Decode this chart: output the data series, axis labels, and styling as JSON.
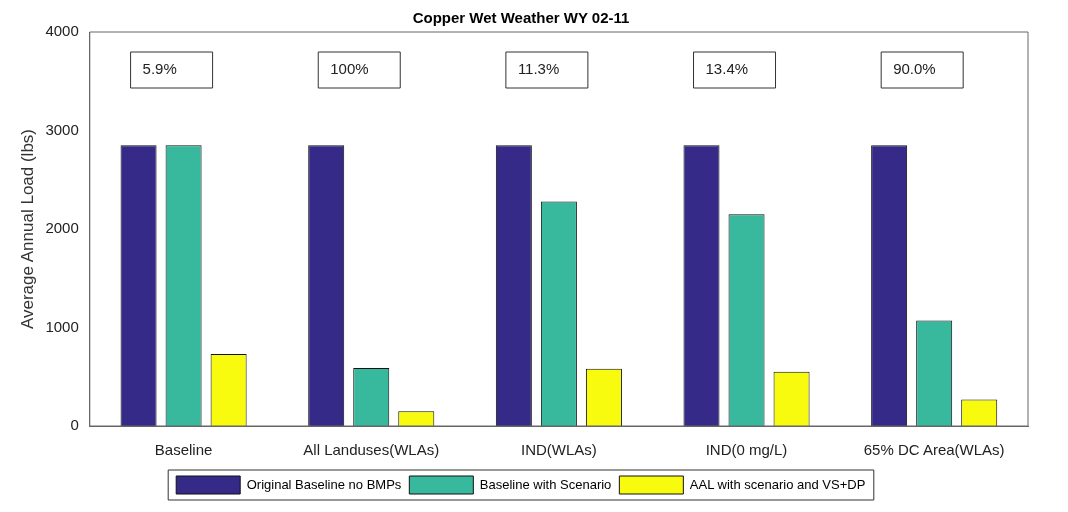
{
  "chart_data": {
    "type": "bar",
    "title": "Copper Wet Weather WY 02-11",
    "ylabel": "Average Annual Load (lbs)",
    "categories": [
      "Baseline",
      "All Landuses(WLAs)",
      "IND(WLAs)",
      "IND(0 mg/L)",
      "65% DC Area(WLAs)"
    ],
    "series": [
      {
        "name": "Original Baseline no BMPs",
        "color": "#352a87",
        "values": [
          2850,
          2850,
          2850,
          2850,
          2850
        ]
      },
      {
        "name": "Baseline with Scenario",
        "color": "#38b99e",
        "values": [
          2850,
          590,
          2280,
          2150,
          1070
        ]
      },
      {
        "name": "AAL with scenario and VS+DP",
        "color": "#f9fb0e",
        "values": [
          730,
          150,
          580,
          550,
          270
        ]
      }
    ],
    "ylim": [
      0,
      4000
    ],
    "yticks": [
      0,
      1000,
      2000,
      3000,
      4000
    ],
    "grid": false,
    "legend": "bottom",
    "annotations": [
      "5.9%",
      "100%",
      "11.3%",
      "13.4%",
      "90.0%"
    ]
  }
}
